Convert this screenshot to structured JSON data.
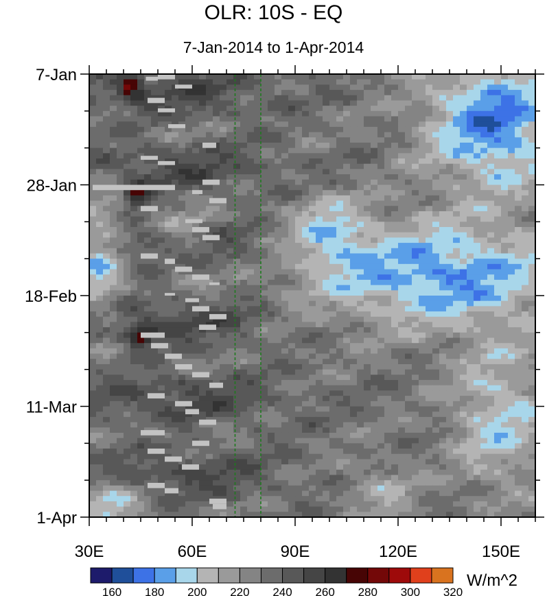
{
  "chart_data": {
    "type": "heatmap",
    "title": "OLR: 10S - EQ",
    "subtitle": "7-Jan-2014 to 1-Apr-2014",
    "xlabel": "",
    "ylabel": "",
    "x_ticks": [
      {
        "value": 30,
        "label": "30E"
      },
      {
        "value": 60,
        "label": "60E"
      },
      {
        "value": 90,
        "label": "90E"
      },
      {
        "value": 120,
        "label": "120E"
      },
      {
        "value": 150,
        "label": "150E"
      }
    ],
    "xlim": [
      30,
      160
    ],
    "y_ticks": [
      {
        "value": "2014-01-07",
        "label": "7-Jan"
      },
      {
        "value": "2014-01-28",
        "label": "28-Jan"
      },
      {
        "value": "2014-02-18",
        "label": "18-Feb"
      },
      {
        "value": "2014-03-11",
        "label": "11-Mar"
      },
      {
        "value": "2014-04-01",
        "label": "1-Apr"
      }
    ],
    "ylim": [
      "2014-01-07",
      "2014-04-01"
    ],
    "y_direction": "time increases downward",
    "reference_lines_x": [
      72.5,
      80
    ],
    "colorbar": {
      "units": "W/m^2",
      "levels": [
        160,
        170,
        180,
        190,
        200,
        210,
        220,
        230,
        240,
        250,
        260,
        270,
        280,
        290,
        300,
        310,
        320
      ],
      "labels": [
        "160",
        "180",
        "200",
        "220",
        "240",
        "260",
        "280",
        "300",
        "320"
      ],
      "colors": [
        "#1d1b6b",
        "#1f4f9a",
        "#3d72e6",
        "#5a9fe8",
        "#a8d6ea",
        "#b4b4b4",
        "#9a9a9a",
        "#848484",
        "#6c6c6c",
        "#585858",
        "#454545",
        "#333333",
        "#470505",
        "#730808",
        "#9e0a0a",
        "#e0401c",
        "#d9731f"
      ]
    },
    "features": [
      {
        "type": "enhanced convection",
        "region": "120E-160E",
        "period": "7-Jan to 28-Jan",
        "value_range": [
          160,
          190
        ]
      },
      {
        "type": "enhanced convection",
        "region": "95E-160E",
        "period": "5-Feb to 25-Feb",
        "value_range": [
          160,
          200
        ]
      },
      {
        "type": "suppressed convection",
        "region": "30E-80E",
        "period": "7-Jan to 1-Apr",
        "value_range": [
          240,
          280
        ]
      },
      {
        "type": "extreme suppressed",
        "locations": [
          [
            "42E",
            "9-Jan"
          ],
          [
            "44E",
            "30-Jan"
          ],
          [
            "45E",
            "26-Feb"
          ]
        ],
        "value_range": [
          280,
          300
        ]
      },
      {
        "type": "missing data",
        "region": "30E-72E",
        "period": "7-Jan to 1-Apr"
      }
    ]
  }
}
